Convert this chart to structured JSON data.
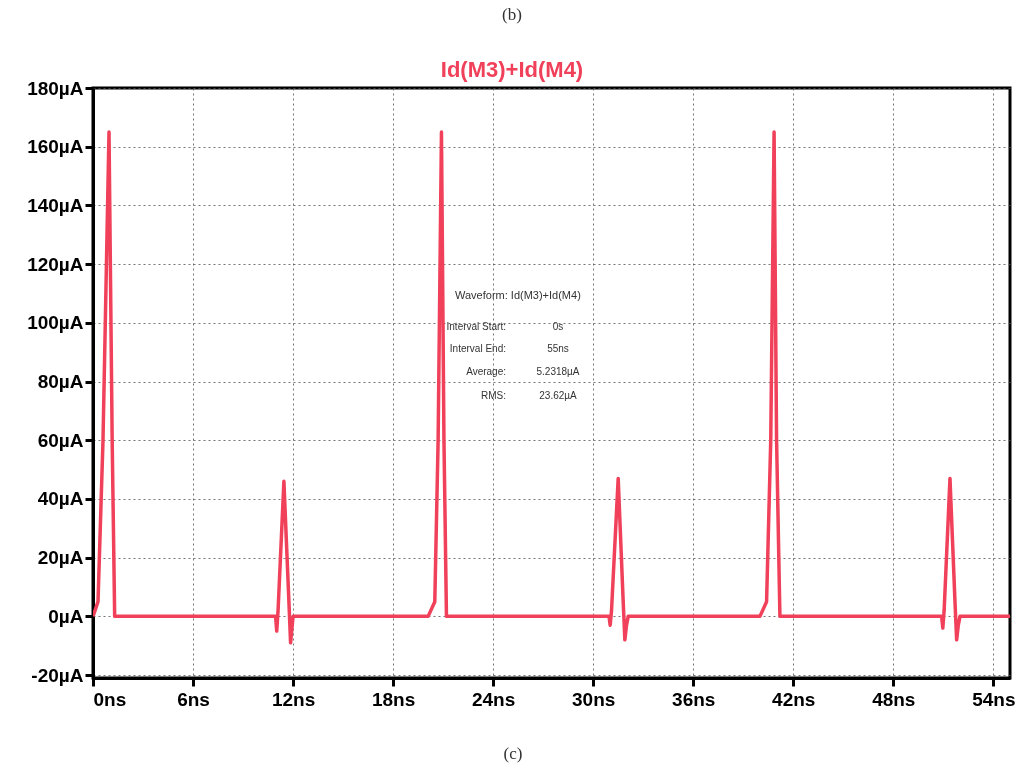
{
  "chart_data": {
    "type": "line",
    "title": "Id(M3)+Id(M4)",
    "x": [
      0,
      0.3,
      0.6,
      0.96,
      1.15,
      1.3,
      10.95,
      11.02,
      11.1,
      11.45,
      11.75,
      11.85,
      11.95,
      12.0,
      20.1,
      20.5,
      20.7,
      20.9,
      21.05,
      21.2,
      30.95,
      31.02,
      31.1,
      31.5,
      31.8,
      31.9,
      32.0,
      32.1,
      40.0,
      40.4,
      40.65,
      40.85,
      41.0,
      41.2,
      50.9,
      50.97,
      51.05,
      51.4,
      51.7,
      51.8,
      51.9,
      52.0,
      55
    ],
    "series": [
      {
        "color": "#f0405a",
        "values": [
          0,
          5,
          60,
          165,
          60,
          0,
          0,
          -5,
          2,
          46,
          5,
          -9,
          -3,
          0,
          0,
          5,
          60,
          165,
          60,
          0,
          0,
          -3,
          2,
          47,
          5,
          -8,
          -3,
          0,
          0,
          5,
          60,
          165,
          60,
          0,
          0,
          -4,
          2,
          47,
          5,
          -8,
          -3,
          0,
          0
        ]
      }
    ],
    "xlim": [
      0,
      55
    ],
    "ylim": [
      -21,
      180
    ],
    "xticks": [
      {
        "value": 0,
        "label": "0ns"
      },
      {
        "value": 6,
        "label": "6ns"
      },
      {
        "value": 12,
        "label": "12ns"
      },
      {
        "value": 18,
        "label": "18ns"
      },
      {
        "value": 24,
        "label": "24ns"
      },
      {
        "value": 30,
        "label": "30ns"
      },
      {
        "value": 36,
        "label": "36ns"
      },
      {
        "value": 42,
        "label": "42ns"
      },
      {
        "value": 48,
        "label": "48ns"
      },
      {
        "value": 54,
        "label": "54ns"
      }
    ],
    "yticks": [
      {
        "value": -20,
        "label": "-20µA"
      },
      {
        "value": 0,
        "label": "0µA"
      },
      {
        "value": 20,
        "label": "20µA"
      },
      {
        "value": 40,
        "label": "40µA"
      },
      {
        "value": 60,
        "label": "60µA"
      },
      {
        "value": 80,
        "label": "80µA"
      },
      {
        "value": 100,
        "label": "100µA"
      },
      {
        "value": 120,
        "label": "120µA"
      },
      {
        "value": 140,
        "label": "140µA"
      },
      {
        "value": 160,
        "label": "160µA"
      },
      {
        "value": 180,
        "label": "180µA"
      }
    ],
    "grid": true,
    "marker": "none",
    "line_style": "solid",
    "annotations": [
      "(b)",
      "(c)",
      "Waveform: Id(M3)+Id(M4)",
      "Interval Start:",
      "0s",
      "Interval End:",
      "55ns",
      "Average:",
      "5.2318µA",
      "RMS:",
      "23.62µA"
    ]
  }
}
